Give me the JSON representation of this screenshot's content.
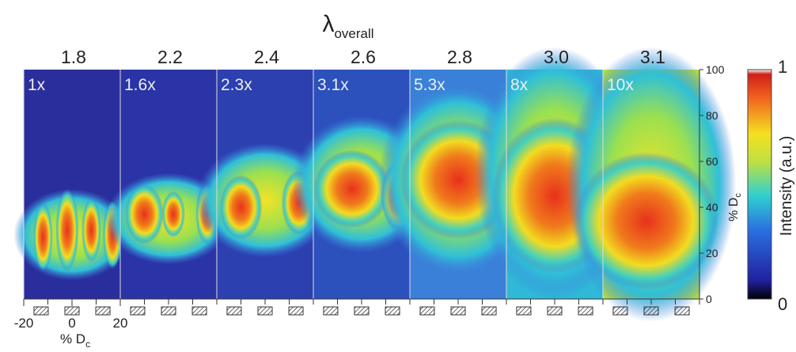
{
  "figure": {
    "title": {
      "symbol": "λ",
      "subscript": "overall"
    },
    "panels": [
      {
        "lambda": "1.8",
        "magnification": "1x"
      },
      {
        "lambda": "2.2",
        "magnification": "1.6x"
      },
      {
        "lambda": "2.4",
        "magnification": "2.3x"
      },
      {
        "lambda": "2.6",
        "magnification": "3.1x"
      },
      {
        "lambda": "2.8",
        "magnification": "5.3x"
      },
      {
        "lambda": "3.0",
        "magnification": "8x"
      },
      {
        "lambda": "3.1",
        "magnification": "10x"
      }
    ],
    "right_axis": {
      "ticks": [
        0,
        20,
        40,
        60,
        80,
        100
      ],
      "label": {
        "text": "% D",
        "subscript": "c"
      }
    },
    "bottom_axis": {
      "ticks": [
        -20,
        0,
        20
      ],
      "label": {
        "text": "% D",
        "subscript": "c"
      }
    },
    "colorbar": {
      "max_label": "1",
      "min_label": "0",
      "label": "Intensity (a.u.)"
    }
  }
}
